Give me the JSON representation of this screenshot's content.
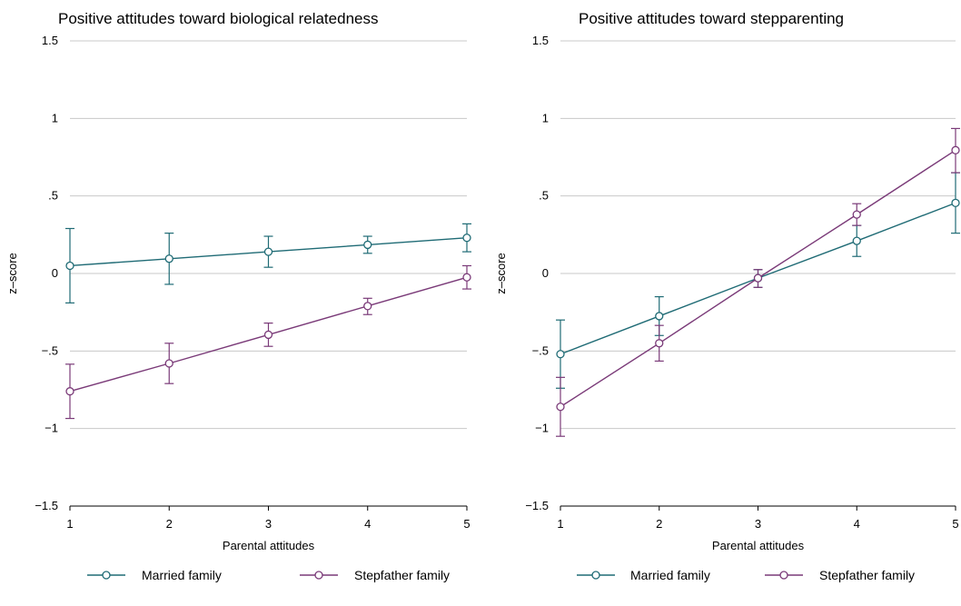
{
  "chart_data": [
    {
      "type": "line",
      "title": "Positive attitudes toward biological relatedness",
      "xlabel": "Parental attitudes",
      "ylabel": "z–score",
      "x": [
        1,
        2,
        3,
        4,
        5
      ],
      "xticks": [
        "1",
        "2",
        "3",
        "4",
        "5"
      ],
      "ylim": [
        -1.5,
        1.5
      ],
      "yticks": [
        {
          "value": 1.5,
          "label": "1.5"
        },
        {
          "value": 1,
          "label": "1"
        },
        {
          "value": 0.5,
          "label": ".5"
        },
        {
          "value": 0,
          "label": "0"
        },
        {
          "value": -0.5,
          "label": "−.5"
        },
        {
          "value": -1,
          "label": "−1"
        },
        {
          "value": -1.5,
          "label": "−1.5"
        }
      ],
      "grid": true,
      "legend_position": "bottom",
      "series": [
        {
          "name": "Married family",
          "color": "#1f6b75",
          "values": [
            0.05,
            0.095,
            0.14,
            0.185,
            0.23
          ],
          "ci_low": [
            -0.19,
            -0.07,
            0.04,
            0.13,
            0.14
          ],
          "ci_high": [
            0.29,
            0.26,
            0.24,
            0.24,
            0.32
          ]
        },
        {
          "name": "Stepfather family",
          "color": "#7a3a78",
          "values": [
            -0.76,
            -0.58,
            -0.395,
            -0.21,
            -0.025
          ],
          "ci_low": [
            -0.935,
            -0.71,
            -0.47,
            -0.265,
            -0.1
          ],
          "ci_high": [
            -0.585,
            -0.45,
            -0.32,
            -0.16,
            0.05
          ]
        }
      ]
    },
    {
      "type": "line",
      "title": "Positive attitudes toward stepparenting",
      "xlabel": "Parental attitudes",
      "ylabel": "z–score",
      "x": [
        1,
        2,
        3,
        4,
        5
      ],
      "xticks": [
        "1",
        "2",
        "3",
        "4",
        "5"
      ],
      "ylim": [
        -1.5,
        1.5
      ],
      "yticks": [
        {
          "value": 1.5,
          "label": "1.5"
        },
        {
          "value": 1,
          "label": "1"
        },
        {
          "value": 0.5,
          "label": ".5"
        },
        {
          "value": 0,
          "label": "0"
        },
        {
          "value": -0.5,
          "label": "−.5"
        },
        {
          "value": -1,
          "label": "−1"
        },
        {
          "value": -1.5,
          "label": "−1.5"
        }
      ],
      "grid": true,
      "legend_position": "bottom",
      "series": [
        {
          "name": "Married family",
          "color": "#1f6b75",
          "values": [
            -0.52,
            -0.275,
            -0.03,
            0.21,
            0.455
          ],
          "ci_low": [
            -0.74,
            -0.4,
            -0.09,
            0.11,
            0.26
          ],
          "ci_high": [
            -0.3,
            -0.15,
            0.025,
            0.31,
            0.65
          ]
        },
        {
          "name": "Stepfather family",
          "color": "#7a3a78",
          "values": [
            -0.86,
            -0.45,
            -0.03,
            0.38,
            0.795
          ],
          "ci_low": [
            -1.05,
            -0.565,
            -0.09,
            0.31,
            0.65
          ],
          "ci_high": [
            -0.67,
            -0.335,
            0.025,
            0.45,
            0.935
          ]
        }
      ]
    }
  ]
}
